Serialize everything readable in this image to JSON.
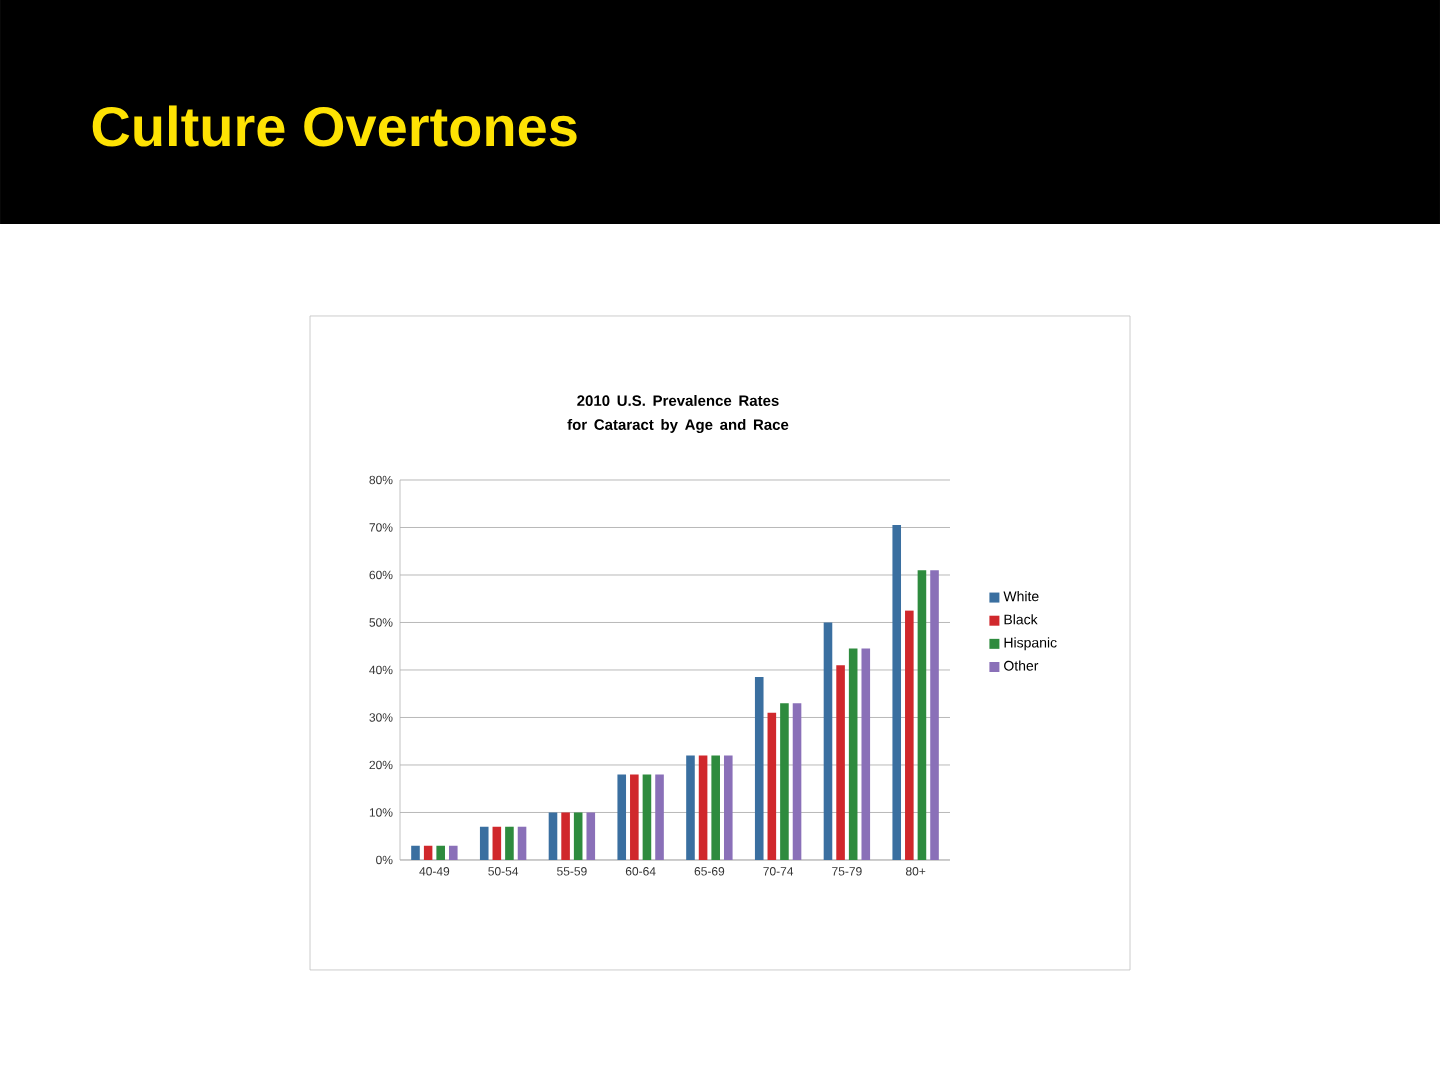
{
  "chart_data": {
    "type": "bar",
    "title": "Culture Overtones",
    "subtitle": "2010 U.S. Prevalence Rates for Cataract by Age and Race",
    "categories": [
      "40-49",
      "50-54",
      "55-59",
      "60-64",
      "65-69",
      "70-74",
      "75-79",
      "80+"
    ],
    "series": [
      {
        "name": "White",
        "color": "#3a6fa0",
        "values": [
          3,
          7,
          10,
          18,
          22,
          38.5,
          50,
          70.5
        ]
      },
      {
        "name": "Black",
        "color": "#d0282c",
        "values": [
          3,
          7,
          10,
          18,
          22,
          31,
          41,
          52.5
        ]
      },
      {
        "name": "Hispanic",
        "color": "#2e8b3e",
        "values": [
          3,
          7,
          10,
          18,
          22,
          33,
          44.5,
          61
        ]
      },
      {
        "name": "Other",
        "color": "#8a70b8",
        "values": [
          3,
          7,
          10,
          18,
          22,
          33,
          44.5,
          61
        ]
      }
    ],
    "ylim": [
      0,
      80
    ],
    "yticks": [
      {
        "value": 0,
        "label": "0%"
      },
      {
        "value": 10,
        "label": "10%"
      },
      {
        "value": 20,
        "label": "20%"
      },
      {
        "value": 30,
        "label": "30%"
      },
      {
        "value": 40,
        "label": "40%"
      },
      {
        "value": 50,
        "label": "50%"
      },
      {
        "value": 60,
        "label": "60%"
      },
      {
        "value": 70,
        "label": "70%"
      },
      {
        "value": 80,
        "label": "80%"
      }
    ],
    "grid": "y",
    "legend": "right"
  }
}
